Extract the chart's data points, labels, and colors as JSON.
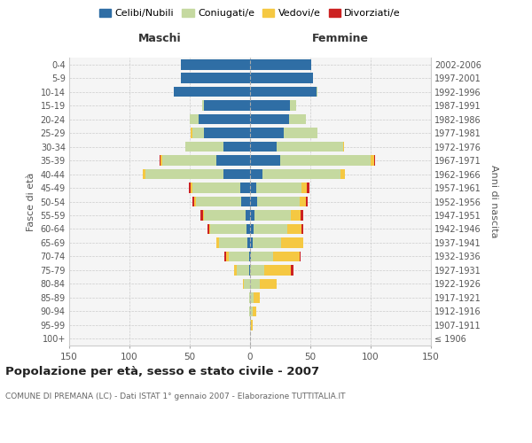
{
  "age_groups": [
    "100+",
    "95-99",
    "90-94",
    "85-89",
    "80-84",
    "75-79",
    "70-74",
    "65-69",
    "60-64",
    "55-59",
    "50-54",
    "45-49",
    "40-44",
    "35-39",
    "30-34",
    "25-29",
    "20-24",
    "15-19",
    "10-14",
    "5-9",
    "0-4"
  ],
  "birth_years": [
    "≤ 1906",
    "1907-1911",
    "1912-1916",
    "1917-1921",
    "1922-1926",
    "1927-1931",
    "1932-1936",
    "1937-1941",
    "1942-1946",
    "1947-1951",
    "1952-1956",
    "1957-1961",
    "1962-1966",
    "1967-1971",
    "1972-1976",
    "1977-1981",
    "1982-1986",
    "1987-1991",
    "1992-1996",
    "1997-2001",
    "2002-2006"
  ],
  "males": {
    "celibi": [
      0,
      0,
      0,
      0,
      0,
      1,
      1,
      2,
      3,
      4,
      7,
      8,
      22,
      28,
      22,
      38,
      43,
      38,
      63,
      57,
      57
    ],
    "coniugati": [
      0,
      0,
      1,
      1,
      5,
      10,
      17,
      24,
      30,
      34,
      38,
      40,
      65,
      45,
      32,
      10,
      7,
      2,
      0,
      0,
      0
    ],
    "vedovi": [
      0,
      0,
      0,
      0,
      1,
      2,
      2,
      2,
      1,
      1,
      1,
      1,
      2,
      1,
      0,
      1,
      0,
      0,
      0,
      0,
      0
    ],
    "divorziati": [
      0,
      0,
      0,
      0,
      0,
      0,
      1,
      0,
      1,
      2,
      2,
      2,
      0,
      1,
      0,
      0,
      0,
      0,
      0,
      0,
      0
    ]
  },
  "females": {
    "nubili": [
      0,
      0,
      0,
      0,
      0,
      0,
      1,
      2,
      3,
      4,
      6,
      5,
      10,
      25,
      22,
      28,
      32,
      33,
      55,
      52,
      51
    ],
    "coniugate": [
      0,
      1,
      2,
      3,
      8,
      12,
      18,
      24,
      28,
      30,
      35,
      38,
      65,
      75,
      55,
      28,
      14,
      5,
      1,
      0,
      0
    ],
    "vedove": [
      0,
      1,
      3,
      5,
      14,
      22,
      22,
      18,
      12,
      8,
      5,
      4,
      4,
      3,
      1,
      0,
      0,
      0,
      0,
      0,
      0
    ],
    "divorziate": [
      0,
      0,
      0,
      0,
      0,
      2,
      1,
      0,
      1,
      2,
      2,
      2,
      0,
      1,
      0,
      0,
      0,
      0,
      0,
      0,
      0
    ]
  },
  "colors": {
    "celibi": "#2f6ea5",
    "coniugati": "#c5d9a0",
    "vedovi": "#f5c842",
    "divorziati": "#cc2222"
  },
  "title": "Popolazione per età, sesso e stato civile - 2007",
  "subtitle": "COMUNE DI PREMANA (LC) - Dati ISTAT 1° gennaio 2007 - Elaborazione TUTTITALIA.IT",
  "xlabel_left": "Maschi",
  "xlabel_right": "Femmine",
  "ylabel_left": "Fasce di età",
  "ylabel_right": "Anni di nascita",
  "xlim": 150,
  "bg_color": "#f5f5f5",
  "grid_color": "#cccccc"
}
